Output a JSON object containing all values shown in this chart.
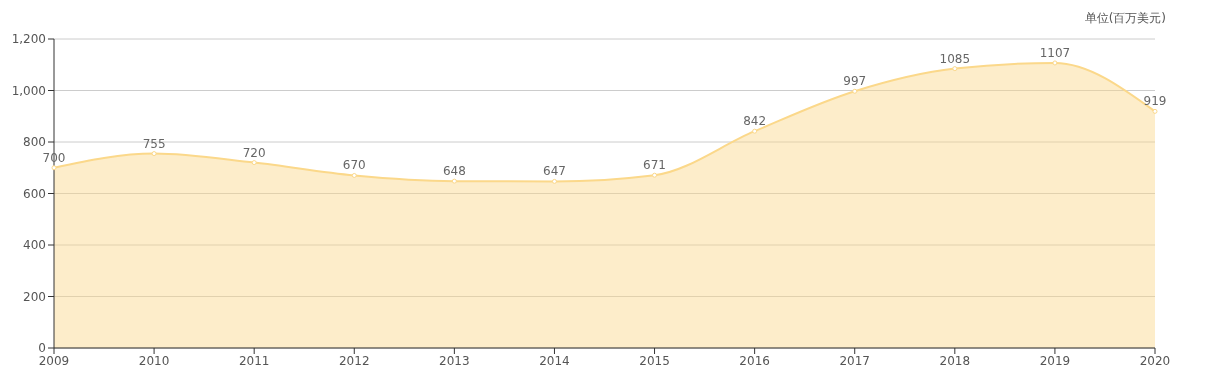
{
  "chart_data": {
    "type": "area",
    "ylabel": "单位(百万美元)",
    "categories": [
      "2009",
      "2010",
      "2011",
      "2012",
      "2013",
      "2014",
      "2015",
      "2016",
      "2017",
      "2018",
      "2019",
      "2020"
    ],
    "series": [
      {
        "color": "#fbd88a",
        "values": [
          700,
          755,
          720,
          670,
          648,
          647,
          671,
          842,
          997,
          1085,
          1107,
          919
        ]
      }
    ],
    "ylim": [
      0,
      1200
    ],
    "yticks": [
      0,
      200,
      400,
      600,
      800,
      {
        "value": 1000,
        "label": "1,000"
      },
      {
        "value": 1200,
        "label": "1,200"
      }
    ],
    "grid": "y",
    "marker": "circle",
    "data_labels": true
  }
}
